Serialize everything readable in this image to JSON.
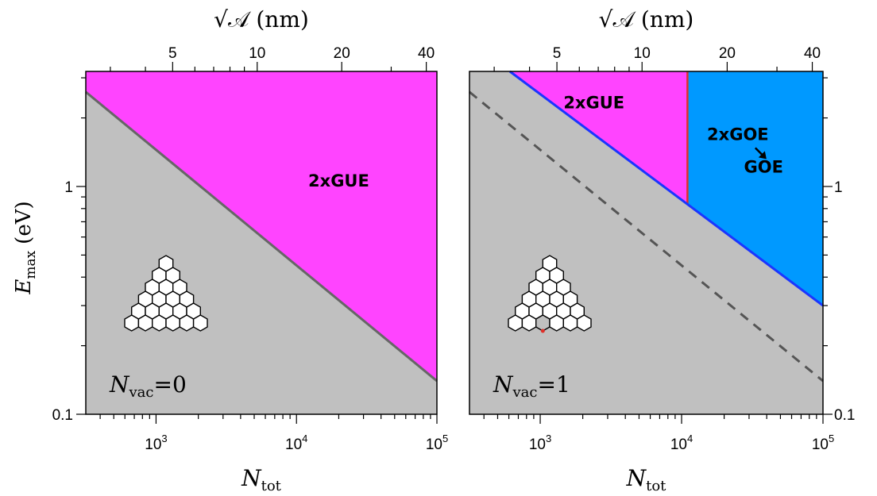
{
  "chart_data": [
    {
      "type": "area",
      "panel": "left",
      "xlabel": "N",
      "xlabel_sub": "tot",
      "ylabel": "E",
      "ylabel_sub": "max",
      "ylabel_unit": "(eV)",
      "top_xlabel": "√𝒜 (nm)",
      "xscale": "log",
      "yscale": "log",
      "xlim": [
        316,
        100000
      ],
      "ylim": [
        0.1,
        3.2
      ],
      "x_ticks": [
        {
          "value": 1000,
          "base": "10",
          "exp": "3"
        },
        {
          "value": 10000,
          "base": "10",
          "exp": "4"
        },
        {
          "value": 100000,
          "base": "10",
          "exp": "5"
        }
      ],
      "y_ticks": [
        {
          "value": 0.1,
          "label": "0.1"
        },
        {
          "value": 1,
          "label": "1"
        }
      ],
      "top_ticks": [
        {
          "value": 5,
          "label": "5"
        },
        {
          "value": 10,
          "label": "10"
        },
        {
          "value": 20,
          "label": "20"
        },
        {
          "value": 40,
          "label": "40"
        }
      ],
      "boundary_solid": {
        "x": [
          316,
          100000
        ],
        "y": [
          2.6,
          0.14
        ]
      },
      "regions": [
        {
          "label": "2xGUE",
          "color": "#ff44ff",
          "label_x": 20000,
          "label_y": 1.0
        }
      ],
      "below_color": "#c0c0c0",
      "annotation": {
        "text": "N",
        "sub": "vac",
        "eq": "=0"
      }
    },
    {
      "type": "area",
      "panel": "right",
      "xlabel": "N",
      "xlabel_sub": "tot",
      "top_xlabel": "√𝒜 (nm)",
      "xscale": "log",
      "yscale": "log",
      "xlim": [
        316,
        100000
      ],
      "ylim": [
        0.1,
        3.2
      ],
      "x_ticks": [
        {
          "value": 1000,
          "base": "10",
          "exp": "3"
        },
        {
          "value": 10000,
          "base": "10",
          "exp": "4"
        },
        {
          "value": 100000,
          "base": "10",
          "exp": "5"
        }
      ],
      "y_ticks": [
        {
          "value": 0.1,
          "label": "0.1"
        },
        {
          "value": 1,
          "label": "1"
        }
      ],
      "top_ticks": [
        {
          "value": 5,
          "label": "5"
        },
        {
          "value": 10,
          "label": "10"
        },
        {
          "value": 20,
          "label": "20"
        },
        {
          "value": 40,
          "label": "40"
        }
      ],
      "boundary_solid": {
        "x": [
          610,
          100000
        ],
        "y": [
          3.2,
          0.3
        ]
      },
      "boundary_dashed": {
        "x": [
          316,
          100000
        ],
        "y": [
          2.6,
          0.14
        ]
      },
      "vertical_boundary_x": 11000,
      "regions": [
        {
          "label": "2xGUE",
          "color": "#ff44ff",
          "label_x": 2400,
          "label_y": 2.2
        },
        {
          "label": "2xGOE",
          "color": "#0099ff",
          "label_x": 25000,
          "label_y": 1.6
        },
        {
          "label": "GOE",
          "color": "#0099ff",
          "label_x": 38000,
          "label_y": 1.15
        }
      ],
      "below_color": "#c0c0c0",
      "annotation": {
        "text": "N",
        "sub": "vac",
        "eq": "=1"
      }
    }
  ]
}
